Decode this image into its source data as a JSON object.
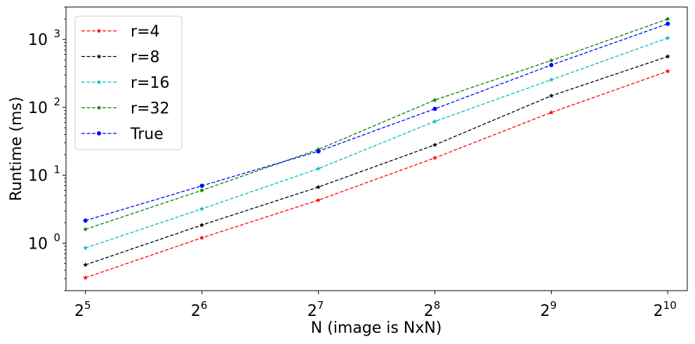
{
  "chart_data": {
    "type": "line",
    "title": "",
    "xlabel": "N (image is NxN)",
    "ylabel": "Runtime (ms)",
    "x": [
      32,
      64,
      128,
      256,
      512,
      1024
    ],
    "xscale": "log2",
    "yscale": "log10",
    "xlim": [
      28.5,
      1150
    ],
    "ylim": [
      0.2,
      3000
    ],
    "x_ticks": [
      {
        "base": "2",
        "exp": "5",
        "value": 32
      },
      {
        "base": "2",
        "exp": "6",
        "value": 64
      },
      {
        "base": "2",
        "exp": "7",
        "value": 128
      },
      {
        "base": "2",
        "exp": "8",
        "value": 256
      },
      {
        "base": "2",
        "exp": "9",
        "value": 512
      },
      {
        "base": "2",
        "exp": "10",
        "value": 1024
      }
    ],
    "y_ticks": [
      {
        "base": "10",
        "exp": "0",
        "value": 1
      },
      {
        "base": "10",
        "exp": "1",
        "value": 10
      },
      {
        "base": "10",
        "exp": "2",
        "value": 100
      },
      {
        "base": "10",
        "exp": "3",
        "value": 1000
      }
    ],
    "grid": false,
    "legend_position": "top-left",
    "series": [
      {
        "name": "r=4",
        "color": "#ff0000",
        "marker": "star",
        "values": [
          0.31,
          1.2,
          4.3,
          18,
          84,
          340
        ]
      },
      {
        "name": "r=8",
        "color": "#000000",
        "marker": "star",
        "values": [
          0.48,
          1.85,
          6.7,
          28,
          148,
          560
        ]
      },
      {
        "name": "r=16",
        "color": "#00bfbf",
        "marker": "star",
        "values": [
          0.85,
          3.2,
          12.5,
          62,
          255,
          1050
        ]
      },
      {
        "name": "r=32",
        "color": "#008000",
        "marker": "star",
        "values": [
          1.6,
          6.0,
          24,
          128,
          490,
          2000
        ]
      },
      {
        "name": "True",
        "color": "#0000ff",
        "marker": "circle",
        "values": [
          2.15,
          7.0,
          22.5,
          95,
          420,
          1700
        ]
      }
    ]
  }
}
